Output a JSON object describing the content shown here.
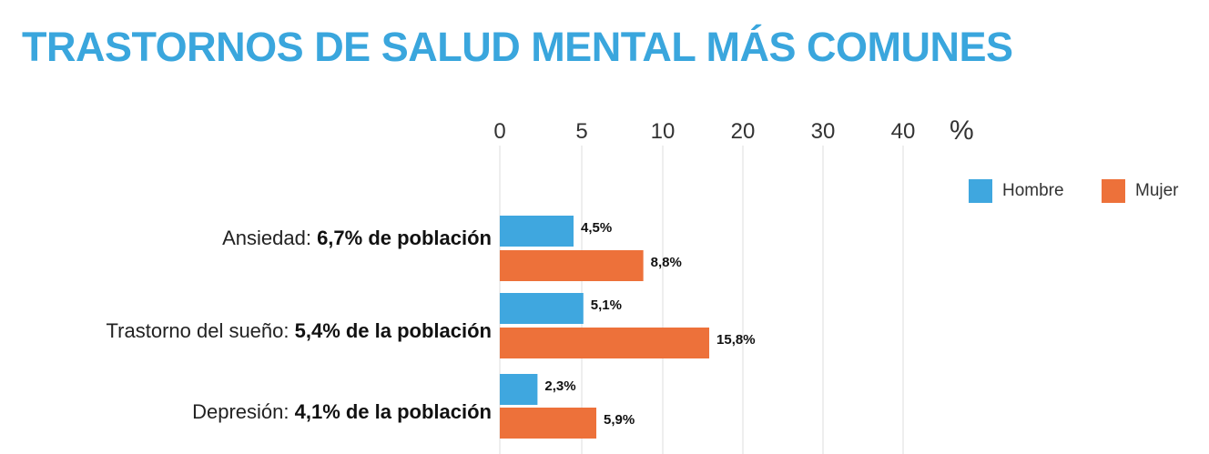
{
  "colors": {
    "title": "#3aa6dd",
    "hombre": "#3fa7df",
    "mujer": "#ed713a",
    "grid": "#dddddd"
  },
  "chart_data": {
    "type": "bar",
    "orientation": "horizontal",
    "title": "TRASTORNOS DE SALUD MENTAL MÁS COMUNES",
    "unit": "%",
    "xticks": [
      0,
      5,
      10,
      20,
      30,
      40
    ],
    "categories": [
      {
        "name": "Ansiedad: ",
        "summary": "6,7% de población"
      },
      {
        "name": "Trastorno del sueño: ",
        "summary": "5,4% de la población"
      },
      {
        "name": "Depresión: ",
        "summary": "4,1% de la población"
      }
    ],
    "series": [
      {
        "name": "Hombre",
        "values": [
          4.5,
          5.1,
          2.3
        ],
        "labels": [
          "4,5%",
          "5,1%",
          "2,3%"
        ]
      },
      {
        "name": "Mujer",
        "values": [
          8.8,
          15.8,
          5.9
        ],
        "labels": [
          "8,8%",
          "15,8%",
          "5,9%"
        ]
      }
    ],
    "legend_position": "top-right"
  }
}
